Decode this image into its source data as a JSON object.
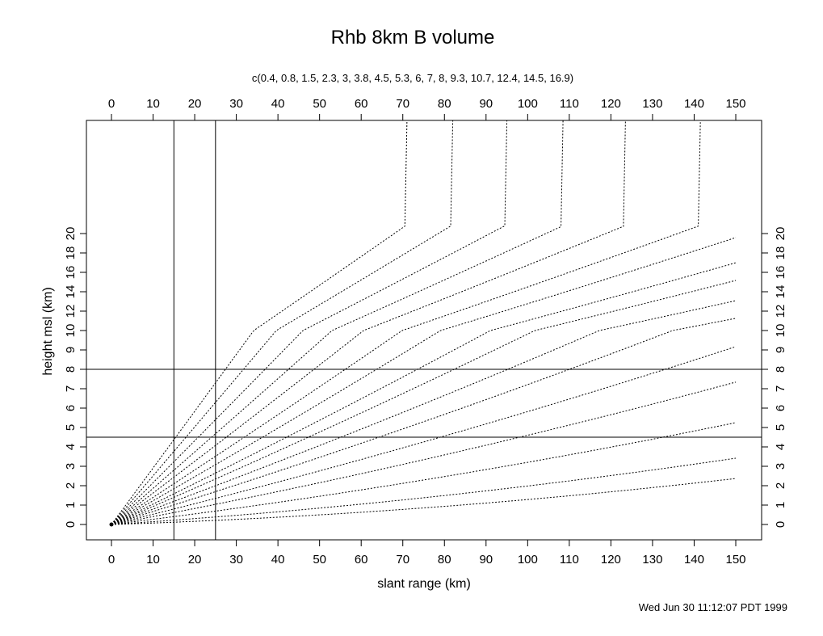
{
  "chart_data": {
    "type": "line",
    "title": "Rhb 8km B volume",
    "subtitle": "c(0.4, 0.8, 1.5, 2.3, 3, 3.8, 4.5, 5.3, 6, 7, 8, 9.3, 10.7, 12.4, 14.5, 16.9)",
    "xlabel": "slant range (km)",
    "ylabel": "height msl (km)",
    "timestamp": "Wed Jun 30 11:12:07 PDT 1999",
    "xlim": [
      -6,
      156
    ],
    "ylim": [
      -0.8,
      20.8
    ],
    "y_scale": "piecewise: 0-10 km at half the scale of 0-20 km labels below 10 km compressed",
    "x_ticks": [
      0,
      10,
      20,
      30,
      40,
      50,
      60,
      70,
      80,
      90,
      100,
      110,
      120,
      130,
      140,
      150
    ],
    "y_ticks": [
      0,
      1,
      2,
      3,
      4,
      5,
      6,
      7,
      8,
      9,
      10,
      12,
      14,
      16,
      18,
      20
    ],
    "elevation_angles_deg": [
      0.4,
      0.8,
      1.5,
      2.3,
      3,
      3.8,
      4.5,
      5.3,
      6,
      7,
      8,
      9.3,
      10.7,
      12.4,
      14.5,
      16.9
    ],
    "reference_lines": {
      "vertical_km": [
        15,
        25
      ],
      "horizontal_km": [
        4.5,
        8
      ]
    },
    "origin_point": {
      "x": 0,
      "y": 0
    },
    "grid": false,
    "line_style": "dotted"
  }
}
